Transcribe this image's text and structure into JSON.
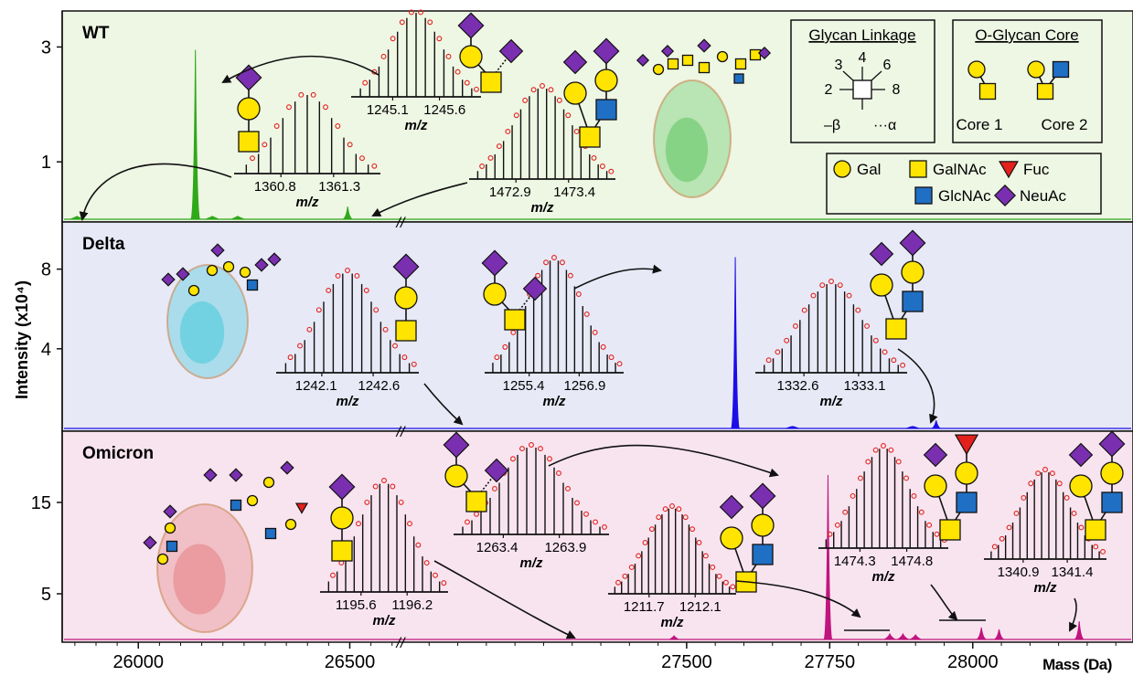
{
  "chart_data": {
    "type": "line",
    "ylabel": "Intensity (x10⁴)",
    "xlabel": "Mass (Da)",
    "x_ticks_left": [
      26000,
      26500
    ],
    "x_ticks_right": [
      27500,
      27750,
      28000
    ],
    "axis_break_symbol": "//",
    "panels": [
      {
        "name": "WT",
        "color": "#2fa81a",
        "bg": "#eef6e4",
        "ylim": [
          0,
          3.5
        ],
        "yticks": [
          1,
          3
        ],
        "spectrum": [
          {
            "x": 25855,
            "y": 0.05,
            "w": 14
          },
          {
            "x": 26135,
            "y": 2.95,
            "w": 10
          },
          {
            "x": 26175,
            "y": 0.05,
            "w": 14
          },
          {
            "x": 26235,
            "y": 0.05,
            "w": 14
          },
          {
            "x": 26495,
            "y": 0.22,
            "w": 10
          }
        ],
        "insets": [
          {
            "ticks": [
              "1360.8",
              "1361.3"
            ],
            "xlabel": "m/z"
          },
          {
            "ticks": [
              "1245.1",
              "1245.6"
            ],
            "xlabel": "m/z"
          },
          {
            "ticks": [
              "1472.9",
              "1473.4"
            ],
            "xlabel": "m/z"
          }
        ]
      },
      {
        "name": "Delta",
        "color": "#1c0fe6",
        "bg": "#e7e9f6",
        "ylim": [
          0,
          10
        ],
        "yticks": [
          4,
          8
        ],
        "spectrum": [
          {
            "x": 27585,
            "y": 8.6,
            "w": 9
          },
          {
            "x": 27685,
            "y": 0.1,
            "w": 14
          },
          {
            "x": 27895,
            "y": 0.1,
            "w": 14
          },
          {
            "x": 27936,
            "y": 0.4,
            "w": 9
          }
        ],
        "insets": [
          {
            "ticks": [
              "1242.1",
              "1242.6"
            ],
            "xlabel": "m/z"
          },
          {
            "ticks": [
              "1255.4",
              "1256.9"
            ],
            "xlabel": "m/z"
          },
          {
            "ticks": [
              "1332.6",
              "1333.1"
            ],
            "xlabel": "m/z"
          }
        ]
      },
      {
        "name": "Omicron",
        "color": "#c0147e",
        "bg": "#f8e4ef",
        "ylim": [
          0,
          22
        ],
        "yticks": [
          5,
          15
        ],
        "spectrum": [
          {
            "x": 27478,
            "y": 0.4,
            "w": 10
          },
          {
            "x": 27747,
            "y": 18.0,
            "w": 9
          },
          {
            "x": 27855,
            "y": 0.6,
            "w": 12
          },
          {
            "x": 27878,
            "y": 0.6,
            "w": 12
          },
          {
            "x": 27900,
            "y": 0.5,
            "w": 12
          },
          {
            "x": 28015,
            "y": 1.3,
            "w": 10
          },
          {
            "x": 28046,
            "y": 1.1,
            "w": 10
          },
          {
            "x": 28186,
            "y": 2.0,
            "w": 10
          }
        ],
        "insets": [
          {
            "ticks": [
              "1195.6",
              "1196.2"
            ],
            "xlabel": "m/z"
          },
          {
            "ticks": [
              "1263.4",
              "1263.9"
            ],
            "xlabel": "m/z"
          },
          {
            "ticks": [
              "1211.7",
              "1212.1"
            ],
            "xlabel": "m/z"
          },
          {
            "ticks": [
              "1474.3",
              "1474.8"
            ],
            "xlabel": "m/z"
          },
          {
            "ticks": [
              "1340.9",
              "1341.4"
            ],
            "xlabel": "m/z"
          }
        ]
      }
    ],
    "legend": {
      "linkage_title": "Glycan Linkage",
      "linkage_positions": [
        "3",
        "4",
        "6",
        "2",
        "8"
      ],
      "beta": "–β",
      "alpha": "···α",
      "core_title": "O-Glycan Core",
      "core1": "Core 1",
      "core2": "Core 2",
      "monosaccharides": [
        {
          "label": "Gal",
          "shape": "circle",
          "color": "#ffe400"
        },
        {
          "label": "GalNAc",
          "shape": "square",
          "color": "#ffe400"
        },
        {
          "label": "Fuc",
          "shape": "triangle",
          "color": "#e3201b"
        },
        {
          "label": "GlcNAc",
          "shape": "square",
          "color": "#1f6fc4"
        },
        {
          "label": "NeuAc",
          "shape": "diamond",
          "color": "#7a2fb0"
        }
      ]
    }
  }
}
